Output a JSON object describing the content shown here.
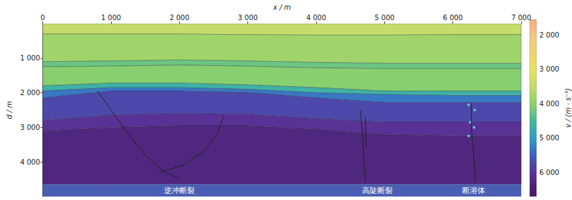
{
  "chart_data": {
    "type": "velocity_section",
    "x_label": "x / m",
    "y_label": "d / m",
    "xlim": [
      0,
      7000
    ],
    "xticks": [
      0,
      {
        "value": 1000,
        "label": "1 000"
      },
      {
        "value": 2000,
        "label": "2 000"
      },
      {
        "value": 3000,
        "label": "3 000"
      },
      {
        "value": 4000,
        "label": "4 000"
      },
      {
        "value": 5000,
        "label": "5 000"
      },
      {
        "value": 6000,
        "label": "6 000"
      },
      {
        "value": 7000,
        "label": "7 000"
      }
    ],
    "ylim": [
      0,
      5000
    ],
    "yticks": [
      {
        "value": 1000,
        "label": "1 000"
      },
      {
        "value": 2000,
        "label": "2 000"
      },
      {
        "value": 3000,
        "label": "3 000"
      },
      {
        "value": 4000,
        "label": "4 000"
      }
    ],
    "x": [
      0,
      1000,
      2000,
      3000,
      4000,
      5000,
      6000,
      7000
    ],
    "layers": [
      {
        "velocity": 3500,
        "top": [
          0,
          0,
          0,
          0,
          0,
          0,
          0,
          0
        ]
      },
      {
        "velocity": 3850,
        "top": [
          300,
          300,
          300,
          320,
          330,
          330,
          320,
          320
        ]
      },
      {
        "velocity": 4250,
        "top": [
          1100,
          1080,
          1050,
          1080,
          1120,
          1150,
          1150,
          1150
        ]
      },
      {
        "velocity": 4050,
        "top": [
          1250,
          1230,
          1200,
          1230,
          1280,
          1300,
          1300,
          1300
        ]
      },
      {
        "velocity": 4650,
        "top": [
          1800,
          1720,
          1720,
          1770,
          1850,
          1950,
          1950,
          1950
        ]
      },
      {
        "velocity": 5300,
        "top": [
          1950,
          1850,
          1850,
          1900,
          2000,
          2050,
          2080,
          2080
        ]
      },
      {
        "velocity": 5750,
        "top": [
          2150,
          1950,
          1950,
          1990,
          2150,
          2280,
          2280,
          2280
        ]
      },
      {
        "velocity": 6000,
        "top": [
          2800,
          2650,
          2600,
          2620,
          2750,
          2850,
          2850,
          2850
        ]
      },
      {
        "velocity": 6300,
        "top": [
          3100,
          3000,
          2950,
          2950,
          3050,
          3200,
          3250,
          3250
        ]
      }
    ],
    "model_base": 4650,
    "faults": [
      [
        [
          800,
          1950
        ],
        [
          1000,
          2500
        ],
        [
          1250,
          3200
        ],
        [
          1500,
          3800
        ],
        [
          1750,
          4250
        ],
        [
          2000,
          4500
        ]
      ],
      [
        [
          2650,
          2650
        ],
        [
          2550,
          3200
        ],
        [
          2350,
          3700
        ],
        [
          2050,
          4100
        ],
        [
          1700,
          4300
        ]
      ],
      [
        [
          4650,
          2500
        ],
        [
          4680,
          3300
        ],
        [
          4700,
          4000
        ],
        [
          4720,
          4600
        ]
      ],
      [
        [
          4720,
          2700
        ],
        [
          4730,
          3600
        ]
      ],
      [
        [
          6270,
          2300
        ],
        [
          6270,
          3000
        ],
        [
          6300,
          3700
        ],
        [
          6330,
          4600
        ]
      ]
    ],
    "caves": [
      [
        6230,
        2350
      ],
      [
        6320,
        2500
      ],
      [
        6250,
        2850
      ],
      [
        6310,
        3000
      ],
      [
        6230,
        3250
      ]
    ],
    "annotations": [
      {
        "text": "逆冲断裂",
        "x": 2000
      },
      {
        "text": "高陡断裂",
        "x": 4900
      },
      {
        "text": "断溶体",
        "x": 6300
      }
    ],
    "colorbar": {
      "label": "v / (m · s⁻¹)",
      "range": [
        1550,
        6700
      ],
      "ticks": [
        {
          "value": 2000,
          "label": "2 000"
        },
        {
          "value": 3000,
          "label": "3 000"
        },
        {
          "value": 4000,
          "label": "4 000"
        },
        {
          "value": 5000,
          "label": "5 000"
        },
        {
          "value": 6000,
          "label": "6 000"
        }
      ]
    }
  }
}
